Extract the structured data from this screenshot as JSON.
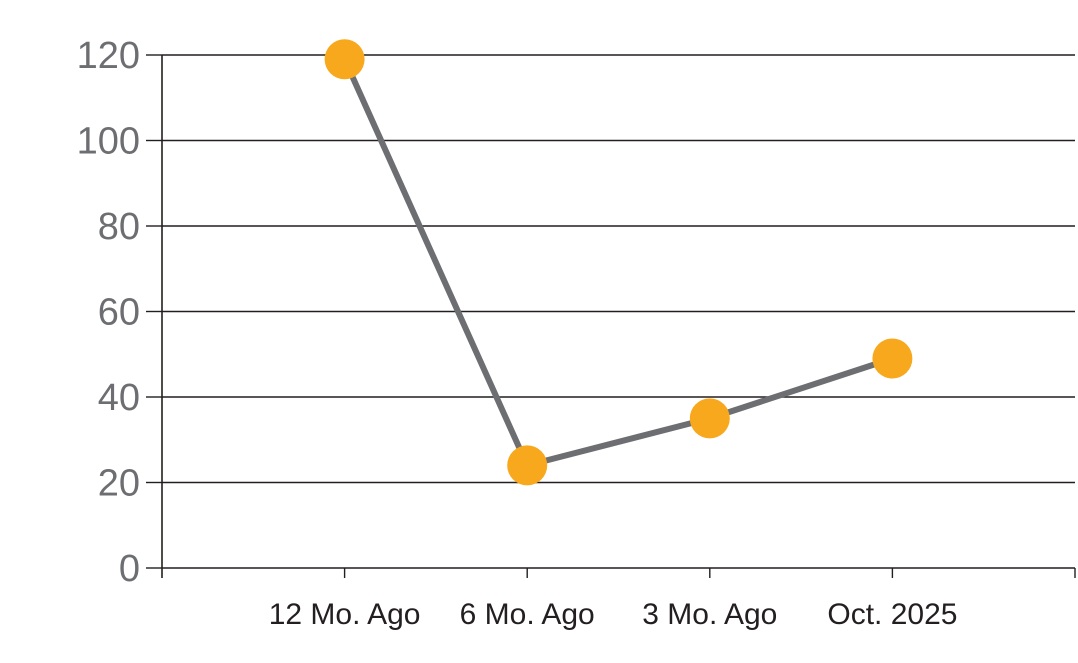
{
  "page": {
    "background": "#ffffff"
  },
  "chart_data": {
    "type": "line",
    "title": "",
    "xlabel": "",
    "ylabel": "",
    "categories": [
      "12 Mo. Ago",
      "6 Mo. Ago",
      "3 Mo. Ago",
      "Oct. 2025"
    ],
    "values": [
      119,
      24,
      35,
      49
    ],
    "ylim": [
      0,
      120
    ],
    "y_ticks": [
      0,
      20,
      40,
      60,
      80,
      100,
      120
    ],
    "y_tick_labels": [
      "0",
      "20",
      "40",
      "60",
      "80",
      "100",
      "120"
    ],
    "grid": true,
    "legend": false,
    "layout_hints": {
      "gridlines": "horizontal, full plot width",
      "markers": "large filled circles on each data point",
      "x_ticks": "below axis at each category plus axis end"
    },
    "colors": {
      "marker": "#F8A81C",
      "line": "#6D6E71",
      "axis": "#231F20",
      "gridline": "#231F20",
      "y_tick_label": "#6D6E71",
      "x_tick_label": "#231F20",
      "background": "#ffffff"
    }
  }
}
